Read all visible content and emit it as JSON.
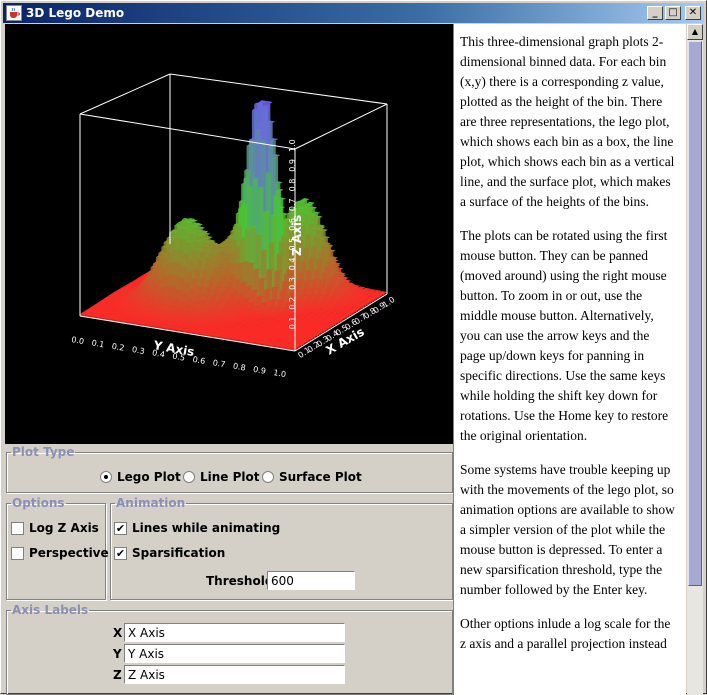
{
  "window": {
    "title": "3D Lego Demo",
    "icon": "java-cup-icon",
    "minimize_glyph": "_",
    "maximize_glyph": "□",
    "close_glyph": "✕"
  },
  "plot": {
    "y_axis_title": "Y Axis",
    "x_axis_title": "X Axis",
    "z_axis_title": "Z Axis",
    "y_ticks": [
      "0.0",
      "0.1",
      "0.2",
      "0.3",
      "0.4",
      "0.5",
      "0.6",
      "0.7",
      "0.8",
      "0.9",
      "1.0"
    ],
    "x_ticks": [
      "0.1",
      "0.2",
      "0.3",
      "0.4",
      "0.5",
      "0.6",
      "0.7",
      "0.8",
      "0.9",
      "1.0"
    ],
    "z_ticks": [
      "0.1",
      "0.2",
      "0.3",
      "0.4",
      "0.5",
      "0.6",
      "0.7",
      "0.8",
      "0.9",
      "1.0"
    ],
    "colors": {
      "background": "#000000",
      "low": "#ff2020",
      "mid": "#40e040",
      "high": "#7070ff"
    }
  },
  "plot_type": {
    "legend": "Plot Type",
    "options": [
      {
        "label": "Lego Plot",
        "selected": true
      },
      {
        "label": "Line Plot",
        "selected": false
      },
      {
        "label": "Surface Plot",
        "selected": false
      }
    ]
  },
  "options": {
    "legend": "Options",
    "log_z": {
      "label": "Log Z Axis",
      "checked": false
    },
    "perspective": {
      "label": "Perspective",
      "checked": false
    }
  },
  "animation": {
    "legend": "Animation",
    "lines_while_animating": {
      "label": "Lines while animating",
      "checked": true
    },
    "sparsification": {
      "label": "Sparsification",
      "checked": true
    },
    "threshold_label": "Threshold",
    "threshold_value": "600"
  },
  "axis_labels": {
    "legend": "Axis Labels",
    "x_label": "X",
    "x_value": "X Axis",
    "y_label": "Y",
    "y_value": "Y Axis",
    "z_label": "Z",
    "z_value": "Z Axis"
  },
  "description": {
    "paragraphs": [
      "This three-dimensional graph plots 2-dimensional binned data. For each bin (x,y) there is a corresponding z value, plotted as the height of the bin. There are three representations, the lego plot, which shows each bin as a box, the line plot, which shows each bin as a vertical line, and the surface plot, which makes a surface of the heights of the bins.",
      "The plots can be rotated using the first mouse button. They can be panned (moved around) using the right mouse button. To zoom in or out, use the middle mouse button. Alternatively, you can use the arrow keys and the page up/down keys for panning in specific directions. Use the same keys while holding the shift key down for rotations. Use the Home key to restore the original orientation.",
      "Some systems have trouble keeping up with the movements of the lego plot, so animation options are available to show a simpler version of the plot while the mouse button is depressed. To enter a new sparsification threshold, type the number followed by the Enter key.",
      "Other options inlude a log scale for the z axis and a parallel projection instead"
    ]
  },
  "scrollbar": {
    "up_glyph": "▲",
    "down_glyph": "▼"
  }
}
